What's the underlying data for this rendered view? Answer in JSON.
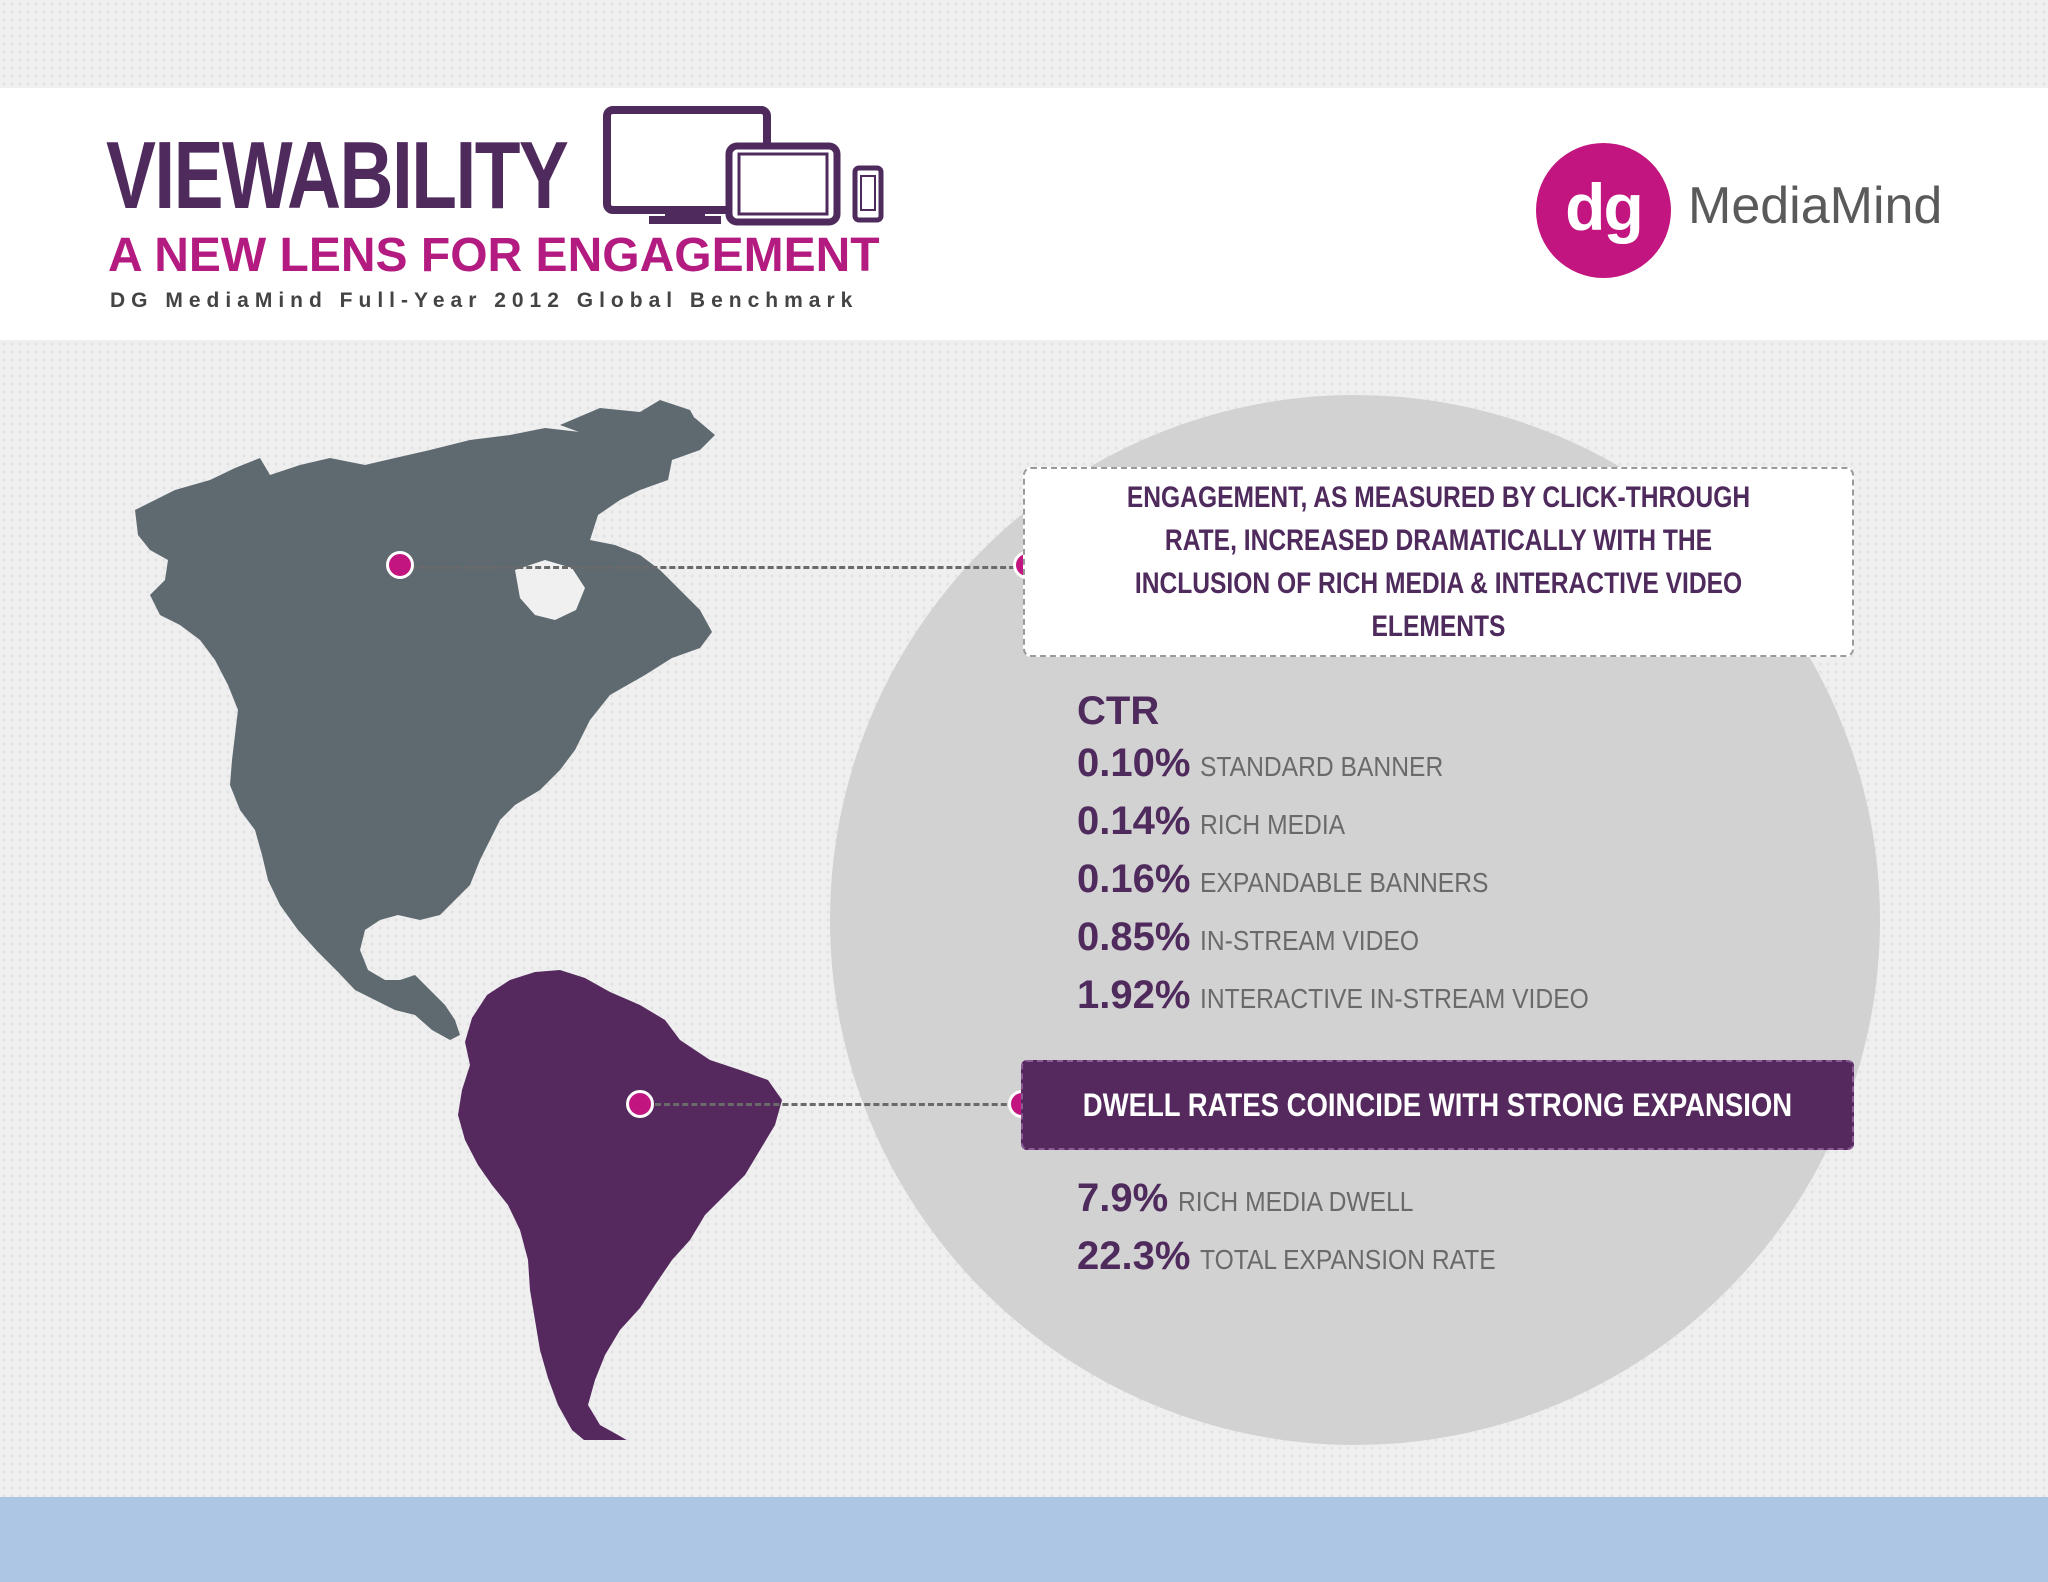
{
  "header": {
    "title": "VIEWABILITY",
    "subtitle": "A NEW LENS FOR ENGAGEMENT",
    "caption": "DG MediaMind Full-Year 2012 Global Benchmark"
  },
  "logo": {
    "mark": "dg",
    "wordmark": "MediaMind"
  },
  "engagement_callout": {
    "text": "ENGAGEMENT, AS MEASURED BY CLICK-THROUGH RATE, INCREASED DRAMATICALLY WITH THE INCLUSION OF RICH MEDIA & INTERACTIVE VIDEO ELEMENTS"
  },
  "ctr": {
    "heading": "CTR",
    "items": [
      {
        "value": "0.10%",
        "label": "STANDARD BANNER"
      },
      {
        "value": "0.14%",
        "label": "RICH MEDIA"
      },
      {
        "value": "0.16%",
        "label": "EXPANDABLE BANNERS"
      },
      {
        "value": "0.85%",
        "label": "IN-STREAM VIDEO"
      },
      {
        "value": "1.92%",
        "label": "INTERACTIVE IN-STREAM VIDEO"
      }
    ]
  },
  "dwell_callout": {
    "text": "DWELL RATES COINCIDE WITH STRONG EXPANSION"
  },
  "dwell": {
    "items": [
      {
        "value": "7.9%",
        "label": "RICH MEDIA DWELL"
      },
      {
        "value": "22.3%",
        "label": "TOTAL EXPANSION RATE"
      }
    ]
  },
  "colors": {
    "purple": "#4f2a5c",
    "magenta": "#c3157f",
    "north_america": "#5f6a70",
    "south_america": "#55295e",
    "circle": "#d3d2d3",
    "footer": "#adc6e3"
  }
}
